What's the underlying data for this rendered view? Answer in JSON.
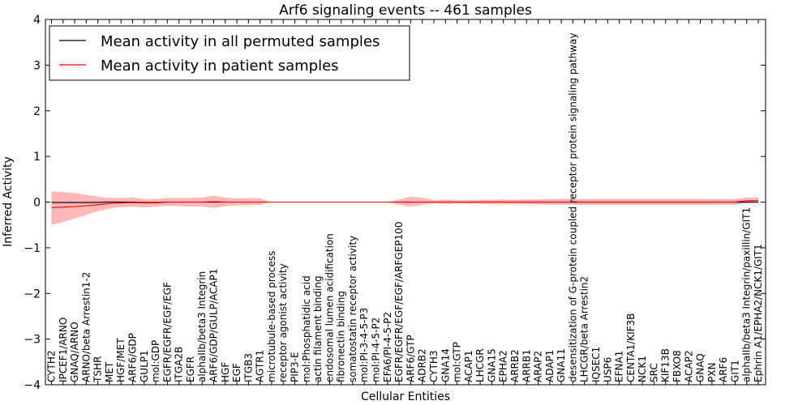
{
  "chart_data": {
    "type": "line",
    "title": "Arf6 signaling events -- 461 samples",
    "xlabel": "Cellular Entities",
    "ylabel": "Inferred Activity",
    "ylim": [
      -4,
      4
    ],
    "yticks": [
      -4,
      -3,
      -2,
      -1,
      0,
      1,
      2,
      3,
      4
    ],
    "legend_position": "top-left",
    "categories": [
      "CYTH2",
      "IPCEF1/ARNO",
      "GNAQ/ARNO",
      "ARNO/beta Arrestin1-2",
      "TSHR",
      "MET",
      "HGF/MET",
      "ARF6/GDP",
      "GULP1",
      "mol:GDP",
      "EGFR/EGFR/EGF/EGF",
      "ITGA2B",
      "EGFR",
      "alphaIIb/beta3 Integrin",
      "ARF6/GDP/GULP/ACAP1",
      "HGF",
      "EGF",
      "ITGB3",
      "AGTR1",
      "microtubule-based process",
      "receptor agonist activity",
      "PIP3-E",
      "mol:Phosphatidic acid",
      "actin filament binding",
      "endosomal lumen acidification",
      "fibronectin binding",
      "somatostatin receptor activity",
      "mol:PI-3-4-5-P3",
      "mol:PI-4-5-P2",
      "EFA6/PI-4-5-P2",
      "EGFR/EGFR/EGF/EGF/ARFGEP100",
      "ARF6/GTP",
      "ADRB2",
      "CYTH3",
      "GNA14",
      "mol:GTP",
      "ACAP1",
      "LHCGR",
      "GNA15",
      "EPHA2",
      "ARRB2",
      "ARRB1",
      "ARAP2",
      "ADAP1",
      "GNA11",
      "desensitization of G-protein coupled receptor protein signaling pathway",
      "LHCGR/beta Arrestin2",
      "IQSEC1",
      "USP6",
      "EFNA1",
      "CENTA1/KIF3B",
      "NCK1",
      "SRC",
      "KIF13B",
      "FBXO8",
      "ACAP2",
      "GNAQ",
      "PXN",
      "ARF6",
      "GIT1",
      "alphaIIb/beta3 Integrin/paxillin/GIT1",
      "Ephrin A1/EPHA2/NCK1/GIT1"
    ],
    "series": [
      {
        "name": "Mean activity in all permuted samples",
        "color": "#000000",
        "values": [
          -0.01,
          -0.01,
          -0.01,
          -0.01,
          -0.01,
          0.0,
          0.0,
          0.0,
          -0.01,
          -0.01,
          0.0,
          0.0,
          0.0,
          0.0,
          0.0,
          0.0,
          0.0,
          0.0,
          0.0,
          0.0,
          0.0,
          0.0,
          0.0,
          0.0,
          0.0,
          0.0,
          0.0,
          0.0,
          0.0,
          0.0,
          0.0,
          0.0,
          0.0,
          0.0,
          0.0,
          0.0,
          0.0,
          0.0,
          0.0,
          0.0,
          0.0,
          0.0,
          0.0,
          0.0,
          0.0,
          0.0,
          0.0,
          0.0,
          0.0,
          0.0,
          0.0,
          0.0,
          0.0,
          0.0,
          0.0,
          0.0,
          0.0,
          0.0,
          0.0,
          0.0,
          0.0,
          0.0
        ],
        "lower": [
          -0.02,
          -0.02,
          -0.02,
          -0.02,
          -0.02,
          -0.02,
          -0.02,
          -0.03,
          -0.03,
          -0.02,
          -0.02,
          -0.02,
          -0.02,
          -0.02,
          -0.02,
          -0.02,
          -0.01,
          -0.01,
          -0.01,
          0.0,
          0.0,
          0.0,
          0.0,
          0.0,
          0.0,
          0.0,
          0.0,
          0.0,
          0.0,
          0.0,
          -0.03,
          -0.03,
          -0.02,
          -0.02,
          -0.02,
          -0.02,
          -0.02,
          -0.02,
          -0.02,
          -0.02,
          -0.03,
          -0.04,
          -0.05,
          -0.06,
          -0.06,
          -0.06,
          -0.07,
          -0.07,
          -0.07,
          -0.07,
          -0.07,
          -0.07,
          -0.07,
          -0.07,
          -0.07,
          -0.07,
          -0.07,
          -0.07,
          -0.06,
          -0.06,
          -0.05,
          -0.05
        ],
        "upper": [
          0.02,
          0.02,
          0.02,
          0.02,
          0.03,
          0.03,
          0.03,
          0.02,
          0.02,
          0.02,
          0.02,
          0.02,
          0.02,
          0.02,
          0.02,
          0.02,
          0.01,
          0.01,
          0.01,
          0.0,
          0.0,
          0.0,
          0.0,
          0.0,
          0.0,
          0.0,
          0.0,
          0.0,
          0.0,
          0.0,
          0.02,
          0.03,
          0.02,
          0.02,
          0.02,
          0.02,
          0.02,
          0.03,
          0.03,
          0.03,
          0.04,
          0.04,
          0.04,
          0.04,
          0.04,
          0.04,
          0.04,
          0.04,
          0.04,
          0.04,
          0.04,
          0.04,
          0.04,
          0.04,
          0.04,
          0.04,
          0.04,
          0.04,
          0.04,
          0.04,
          0.04,
          0.04
        ]
      },
      {
        "name": "Mean activity in patient samples",
        "color": "#ff0000",
        "values": [
          -0.12,
          -0.11,
          -0.1,
          -0.08,
          -0.06,
          -0.03,
          -0.02,
          -0.01,
          -0.02,
          -0.02,
          0.0,
          0.0,
          0.0,
          0.0,
          0.01,
          0.0,
          0.0,
          0.0,
          0.0,
          0.0,
          0.0,
          0.0,
          0.0,
          0.0,
          0.0,
          0.0,
          0.0,
          0.0,
          0.0,
          0.0,
          0.0,
          0.0,
          0.0,
          0.0,
          0.0,
          0.0,
          0.0,
          0.0,
          0.0,
          0.0,
          0.0,
          0.0,
          0.0,
          0.0,
          0.0,
          0.0,
          0.0,
          0.0,
          0.0,
          0.0,
          0.0,
          0.0,
          0.0,
          0.0,
          0.0,
          0.0,
          0.0,
          0.0,
          0.0,
          0.0,
          0.03,
          0.03
        ],
        "lower": [
          -0.5,
          -0.44,
          -0.36,
          -0.28,
          -0.2,
          -0.14,
          -0.11,
          -0.1,
          -0.12,
          -0.1,
          -0.08,
          -0.09,
          -0.1,
          -0.1,
          -0.13,
          -0.09,
          -0.07,
          -0.07,
          -0.06,
          0.0,
          0.0,
          0.0,
          0.0,
          0.0,
          0.0,
          0.0,
          0.0,
          0.0,
          0.0,
          0.0,
          -0.06,
          -0.1,
          -0.06,
          -0.03,
          -0.05,
          -0.03,
          -0.04,
          -0.04,
          -0.05,
          -0.05,
          -0.05,
          -0.05,
          -0.05,
          -0.05,
          -0.05,
          -0.05,
          -0.05,
          -0.05,
          -0.05,
          -0.05,
          -0.05,
          -0.05,
          -0.05,
          -0.05,
          -0.05,
          -0.05,
          -0.05,
          -0.05,
          -0.05,
          -0.05,
          -0.02,
          -0.01
        ],
        "upper": [
          0.24,
          0.22,
          0.2,
          0.16,
          0.12,
          0.09,
          0.09,
          0.1,
          0.07,
          0.07,
          0.09,
          0.09,
          0.09,
          0.1,
          0.14,
          0.1,
          0.08,
          0.09,
          0.08,
          0.0,
          0.0,
          0.0,
          0.0,
          0.0,
          0.0,
          0.0,
          0.0,
          0.0,
          0.0,
          0.0,
          0.06,
          0.12,
          0.1,
          0.04,
          0.06,
          0.04,
          0.05,
          0.05,
          0.05,
          0.06,
          0.05,
          0.06,
          0.06,
          0.07,
          0.07,
          0.07,
          0.07,
          0.07,
          0.07,
          0.07,
          0.07,
          0.07,
          0.07,
          0.07,
          0.07,
          0.07,
          0.07,
          0.07,
          0.07,
          0.07,
          0.1,
          0.1
        ]
      }
    ]
  }
}
